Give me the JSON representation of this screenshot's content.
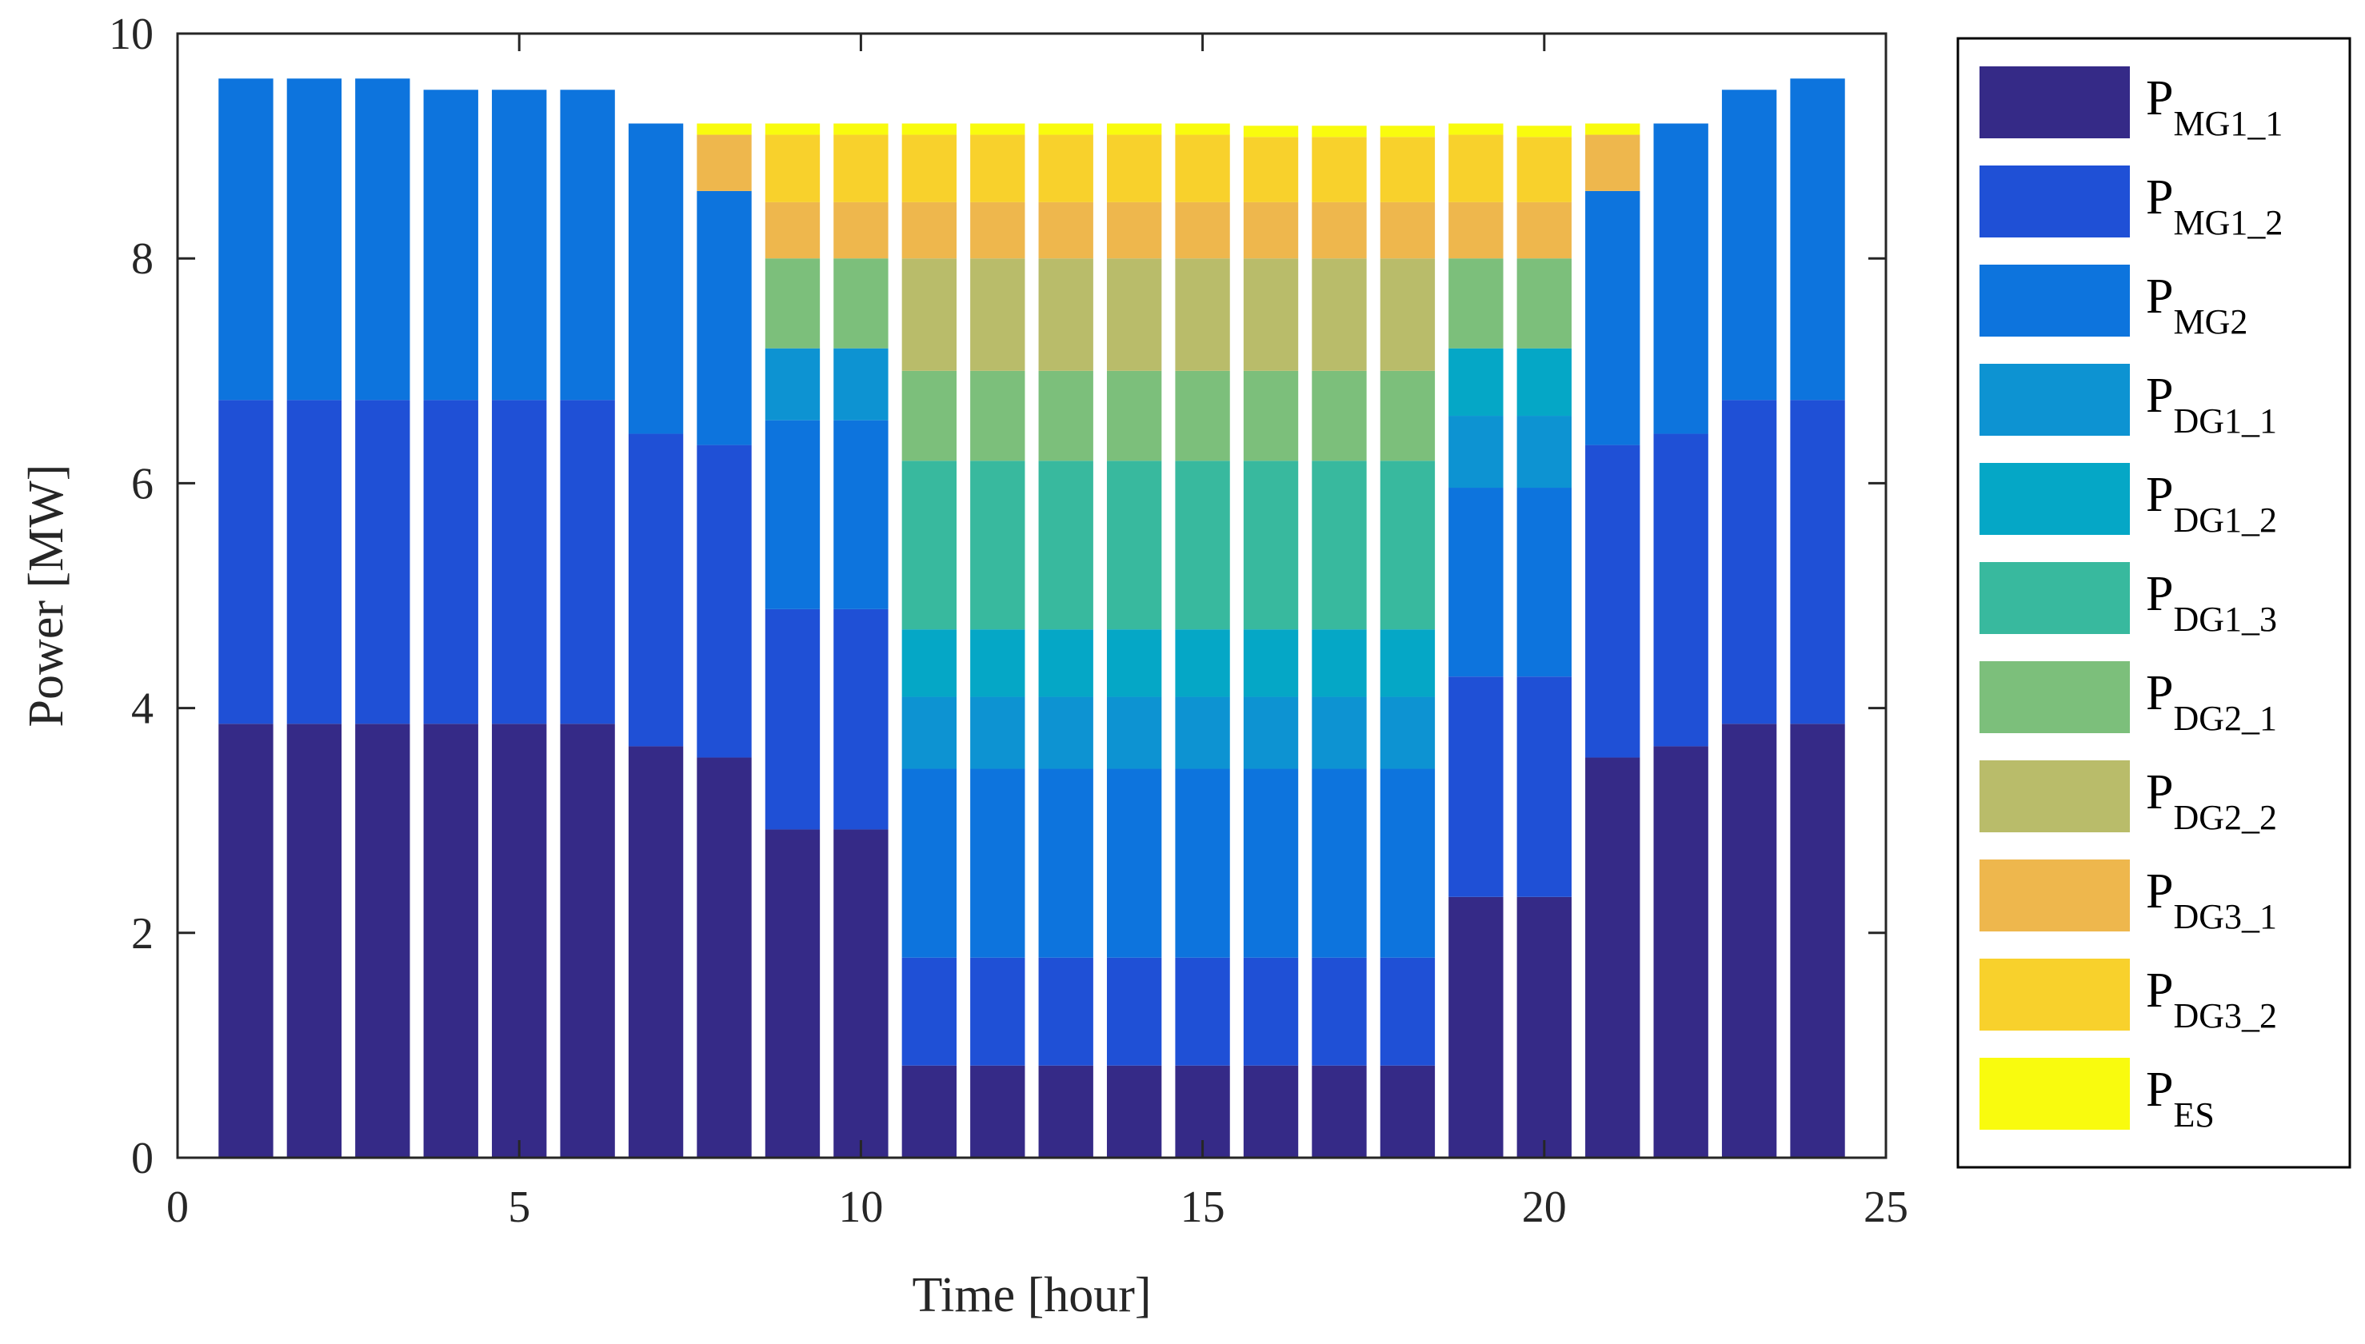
{
  "chart_data": {
    "type": "stacked-bar",
    "title": "",
    "xlabel": "Time [hour]",
    "ylabel": "Power [MW]",
    "xlim": [
      0,
      25
    ],
    "ylim": [
      0,
      10
    ],
    "xticks": [
      0,
      5,
      10,
      15,
      20,
      25
    ],
    "yticks": [
      0,
      2,
      4,
      6,
      8,
      10
    ],
    "grid": false,
    "legend_position": "right-outside",
    "categories": [
      1,
      2,
      3,
      4,
      5,
      6,
      7,
      8,
      9,
      10,
      11,
      12,
      13,
      14,
      15,
      16,
      17,
      18,
      19,
      20,
      21,
      22,
      23,
      24
    ],
    "series": [
      {
        "name": "P",
        "subscript": "MG1_1",
        "color": "#352a87",
        "values": [
          3.86,
          3.86,
          3.86,
          3.86,
          3.86,
          3.86,
          3.66,
          3.56,
          2.92,
          2.92,
          0.82,
          0.82,
          0.82,
          0.82,
          0.82,
          0.82,
          0.82,
          0.82,
          2.32,
          2.32,
          3.56,
          3.66,
          3.86,
          3.86
        ]
      },
      {
        "name": "P",
        "subscript": "MG1_2",
        "color": "#1f50d6",
        "values": [
          2.88,
          2.88,
          2.88,
          2.88,
          2.88,
          2.88,
          2.78,
          2.78,
          1.96,
          1.96,
          0.96,
          0.96,
          0.96,
          0.96,
          0.96,
          0.96,
          0.96,
          0.96,
          1.96,
          1.96,
          2.78,
          2.78,
          2.88,
          2.88
        ]
      },
      {
        "name": "P",
        "subscript": "MG2",
        "color": "#0d74dd",
        "values": [
          2.86,
          2.86,
          2.86,
          2.76,
          2.76,
          2.76,
          2.76,
          2.26,
          1.68,
          1.68,
          1.68,
          1.68,
          1.68,
          1.68,
          1.68,
          1.68,
          1.68,
          1.68,
          1.68,
          1.68,
          2.26,
          2.76,
          2.76,
          2.86
        ]
      },
      {
        "name": "P",
        "subscript": "DG1_1",
        "color": "#0d93d2",
        "values": [
          0,
          0,
          0,
          0,
          0,
          0,
          0,
          0,
          0.64,
          0.64,
          0.64,
          0.64,
          0.64,
          0.64,
          0.64,
          0.64,
          0.64,
          0.64,
          0.64,
          0.64,
          0,
          0,
          0,
          0
        ]
      },
      {
        "name": "P",
        "subscript": "DG1_2",
        "color": "#05a7c6",
        "values": [
          0,
          0,
          0,
          0,
          0,
          0,
          0,
          0,
          0,
          0,
          0.6,
          0.6,
          0.6,
          0.6,
          0.6,
          0.6,
          0.6,
          0.6,
          0.6,
          0.6,
          0,
          0,
          0,
          0
        ]
      },
      {
        "name": "P",
        "subscript": "DG1_3",
        "color": "#38b99e",
        "values": [
          0,
          0,
          0,
          0,
          0,
          0,
          0,
          0,
          0,
          0,
          1.5,
          1.5,
          1.5,
          1.5,
          1.5,
          1.5,
          1.5,
          1.5,
          0,
          0,
          0,
          0,
          0,
          0
        ]
      },
      {
        "name": "P",
        "subscript": "DG2_1",
        "color": "#7cbf7b",
        "values": [
          0,
          0,
          0,
          0,
          0,
          0,
          0,
          0,
          0.8,
          0.8,
          0.8,
          0.8,
          0.8,
          0.8,
          0.8,
          0.8,
          0.8,
          0.8,
          0.8,
          0.8,
          0,
          0,
          0,
          0
        ]
      },
      {
        "name": "P",
        "subscript": "DG2_2",
        "color": "#b9bc6a",
        "values": [
          0,
          0,
          0,
          0,
          0,
          0,
          0,
          0,
          0,
          0,
          1.0,
          1.0,
          1.0,
          1.0,
          1.0,
          1.0,
          1.0,
          1.0,
          0,
          0,
          0,
          0,
          0,
          0
        ]
      },
      {
        "name": "P",
        "subscript": "DG3_1",
        "color": "#eeb74d",
        "values": [
          0,
          0,
          0,
          0,
          0,
          0,
          0,
          0.5,
          0.5,
          0.5,
          0.5,
          0.5,
          0.5,
          0.5,
          0.5,
          0.5,
          0.5,
          0.5,
          0.5,
          0.5,
          0.5,
          0,
          0,
          0
        ]
      },
      {
        "name": "P",
        "subscript": "DG3_2",
        "color": "#f8d12c",
        "values": [
          0,
          0,
          0,
          0,
          0,
          0,
          0,
          0,
          0.6,
          0.6,
          0.6,
          0.6,
          0.6,
          0.6,
          0.6,
          0.58,
          0.58,
          0.58,
          0.6,
          0.58,
          0,
          0,
          0,
          0
        ]
      },
      {
        "name": "P",
        "subscript": "ES",
        "color": "#f9fb0e",
        "values": [
          0,
          0,
          0,
          0,
          0,
          0,
          0,
          0.1,
          0.1,
          0.1,
          0.1,
          0.1,
          0.1,
          0.1,
          0.1,
          0.1,
          0.1,
          0.1,
          0.1,
          0.1,
          0.1,
          0,
          0,
          0
        ]
      }
    ]
  }
}
